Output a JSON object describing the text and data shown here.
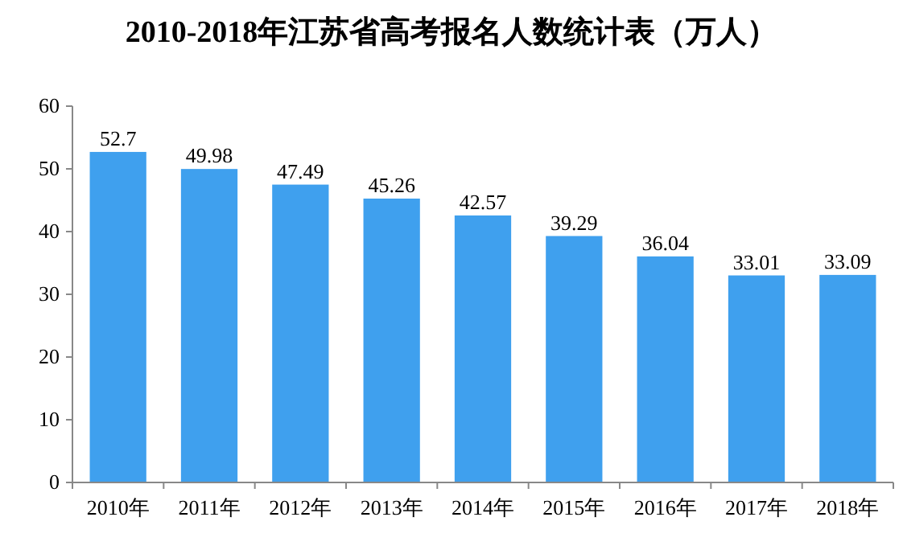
{
  "chart_data": {
    "type": "bar",
    "title": "2010-2018年江苏省高考报名人数统计表（万人）",
    "categories": [
      "2010年",
      "2011年",
      "2012年",
      "2013年",
      "2014年",
      "2015年",
      "2016年",
      "2017年",
      "2018年"
    ],
    "values": [
      52.7,
      49.98,
      47.49,
      45.26,
      42.57,
      39.29,
      36.04,
      33.01,
      33.09
    ],
    "color": "#3fa0ee",
    "ylim": [
      0,
      60
    ],
    "yticks": [
      0,
      10,
      20,
      30,
      40,
      50,
      60
    ],
    "data_labels": true,
    "grid": false
  }
}
